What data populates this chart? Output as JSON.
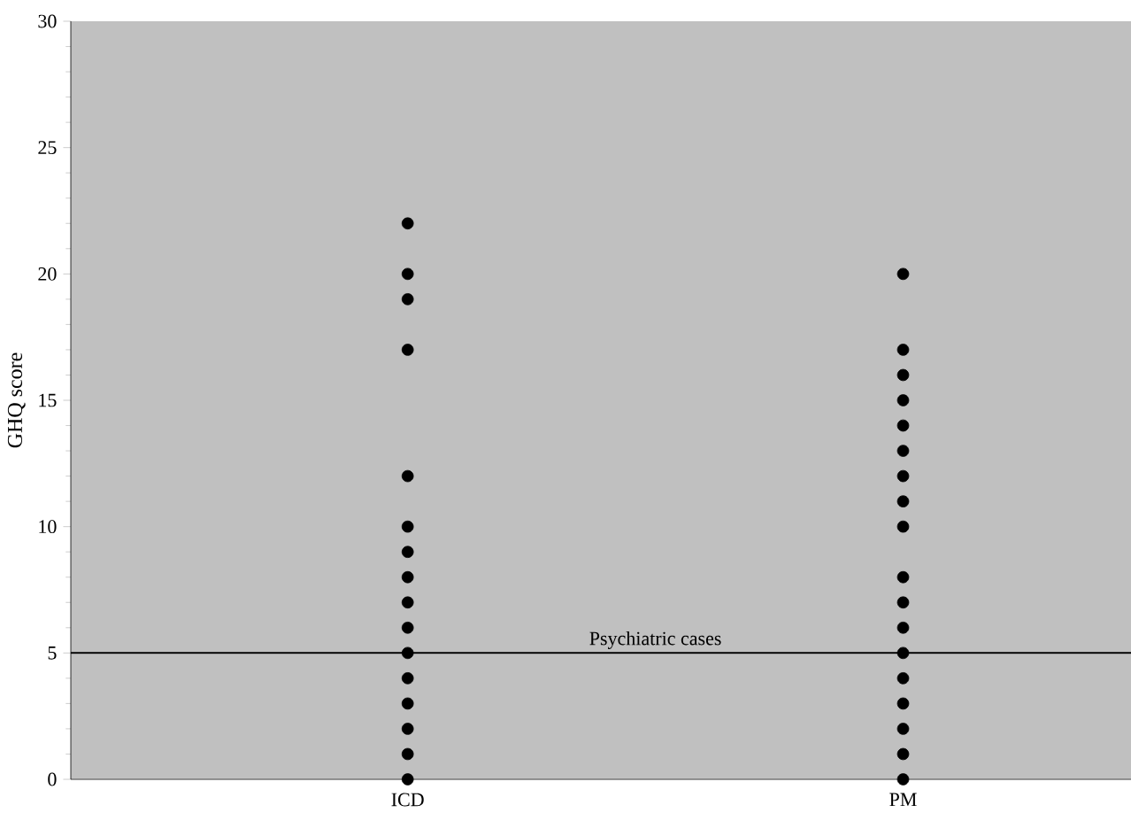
{
  "chart_data": {
    "type": "scatter",
    "ylabel": "GHQ score",
    "categories": [
      "ICD",
      "PM"
    ],
    "series": [
      {
        "color": "#000000",
        "x": [
          "ICD",
          "ICD",
          "ICD",
          "ICD",
          "ICD",
          "ICD",
          "ICD",
          "ICD",
          "ICD",
          "ICD",
          "ICD",
          "ICD",
          "ICD",
          "ICD",
          "ICD",
          "ICD",
          "PM",
          "PM",
          "PM",
          "PM",
          "PM",
          "PM",
          "PM",
          "PM",
          "PM",
          "PM",
          "PM",
          "PM",
          "PM",
          "PM",
          "PM",
          "PM",
          "PM",
          "PM"
        ],
        "values": [
          22,
          20,
          19,
          17,
          12,
          10,
          9,
          8,
          7,
          6,
          5,
          4,
          3,
          2,
          1,
          0,
          20,
          17,
          16,
          15,
          14,
          13,
          12,
          11,
          10,
          8,
          7,
          6,
          5,
          4,
          3,
          2,
          1,
          0
        ]
      }
    ],
    "ylim": [
      0,
      30
    ],
    "yticks": [
      0,
      5,
      10,
      15,
      20,
      25,
      30
    ],
    "marker": "circle",
    "grid": false,
    "ref_lines": [
      {
        "axis": "y",
        "value": 5,
        "label": "Psychiatric cases",
        "color": "#000000"
      }
    ]
  }
}
